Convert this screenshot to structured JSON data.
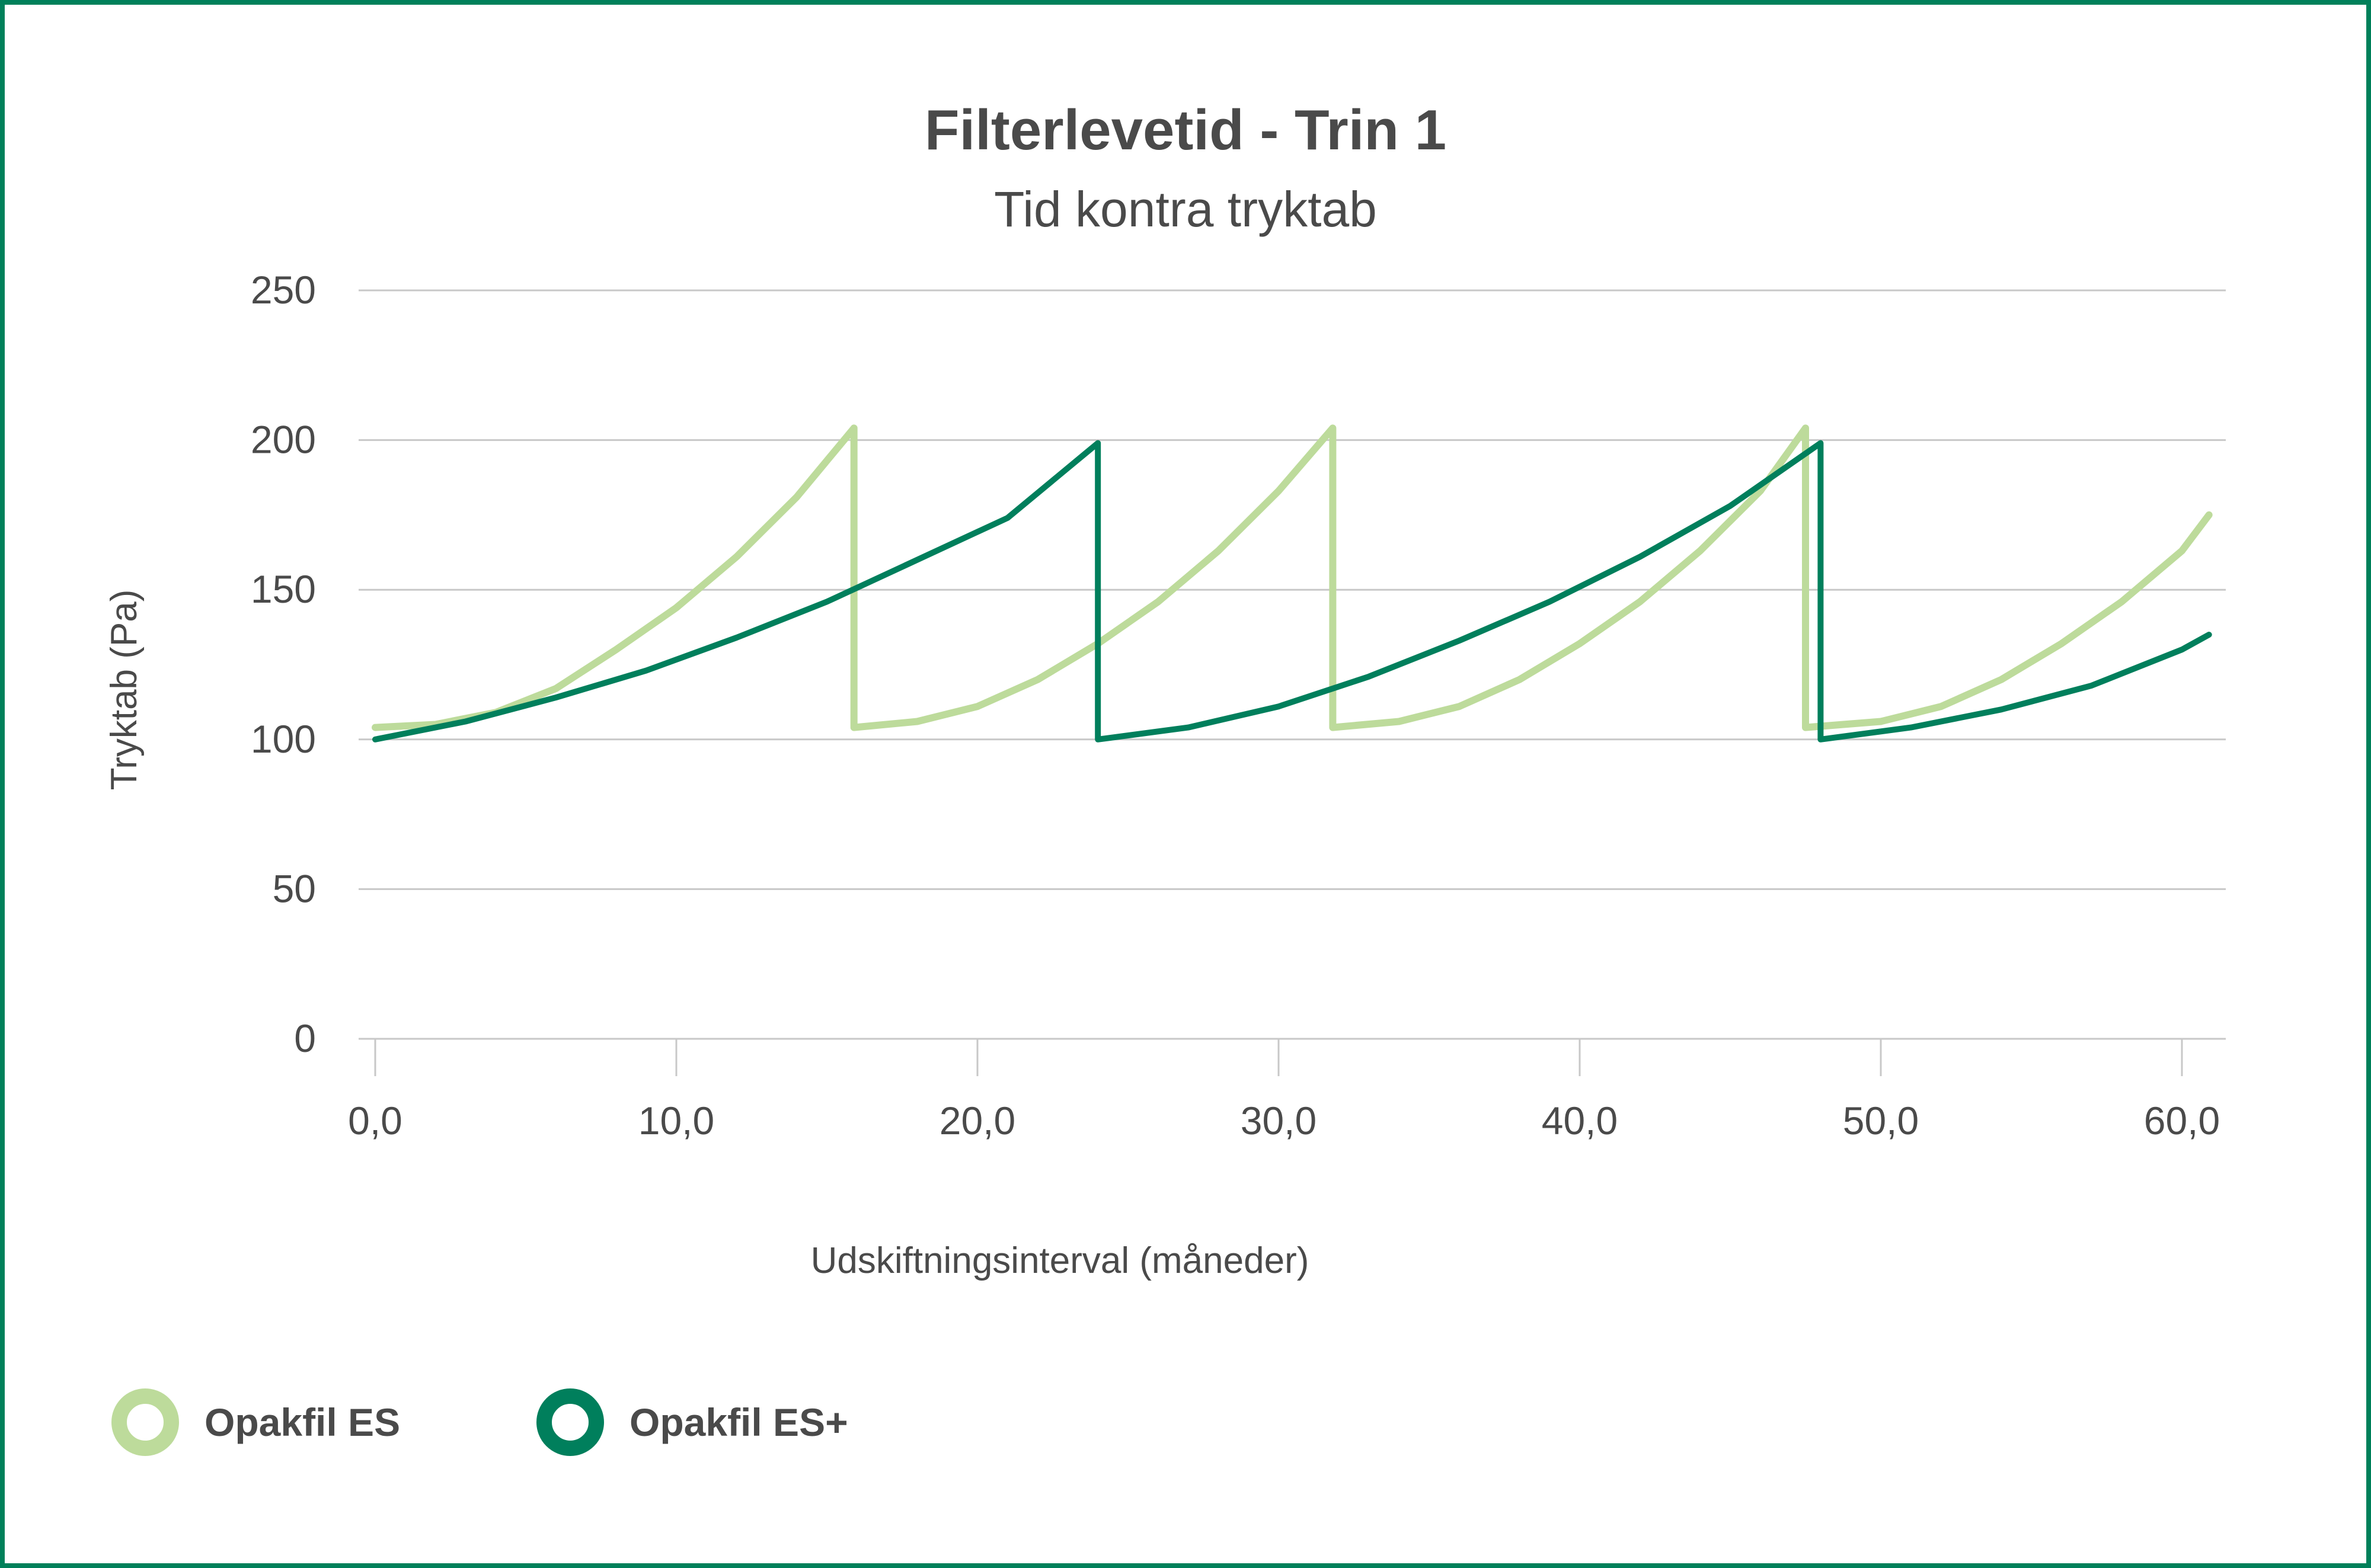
{
  "colors": {
    "frame": "#00805a",
    "grid": "#c8c8c8",
    "text": "#4a4a4a",
    "series_es": "#bddb9b",
    "series_es_plus": "#007f5c"
  },
  "chart_data": {
    "type": "line",
    "title": "Filterlevetid - Trin 1",
    "subtitle": "Tid kontra tryktab",
    "xlabel": "Udskiftningsinterval (måneder)",
    "ylabel": "Tryktab (Pa)",
    "xlim": [
      0,
      61
    ],
    "ylim": [
      0,
      250
    ],
    "x_ticks": [
      "0,0",
      "10,0",
      "20,0",
      "30,0",
      "40,0",
      "50,0",
      "60,0"
    ],
    "x_tick_values": [
      0,
      10,
      20,
      30,
      40,
      50,
      60
    ],
    "y_ticks": [
      "250",
      "200",
      "150",
      "100",
      "50",
      "0"
    ],
    "y_tick_values": [
      250,
      200,
      150,
      100,
      50,
      0
    ],
    "grid": "horizontal",
    "legend_position": "bottom-left",
    "series": [
      {
        "name": "Opakfil ES",
        "color": "#bddb9b",
        "points": [
          [
            0,
            104
          ],
          [
            2,
            105
          ],
          [
            4,
            109
          ],
          [
            6,
            117
          ],
          [
            8,
            130
          ],
          [
            10,
            144
          ],
          [
            12,
            161
          ],
          [
            14,
            181
          ],
          [
            15.9,
            204
          ],
          [
            15.9,
            104
          ],
          [
            18,
            106
          ],
          [
            20,
            111
          ],
          [
            22,
            120
          ],
          [
            24,
            132
          ],
          [
            26,
            146
          ],
          [
            28,
            163
          ],
          [
            30,
            183
          ],
          [
            31.8,
            204
          ],
          [
            31.8,
            104
          ],
          [
            34,
            106
          ],
          [
            36,
            111
          ],
          [
            38,
            120
          ],
          [
            40,
            132
          ],
          [
            42,
            146
          ],
          [
            44,
            163
          ],
          [
            46,
            183
          ],
          [
            47.5,
            204
          ],
          [
            47.5,
            104
          ],
          [
            50,
            106
          ],
          [
            52,
            111
          ],
          [
            54,
            120
          ],
          [
            56,
            132
          ],
          [
            58,
            146
          ],
          [
            60,
            163
          ],
          [
            60.9,
            175
          ]
        ]
      },
      {
        "name": "Opakfil ES+",
        "color": "#007f5c",
        "points": [
          [
            0,
            100
          ],
          [
            3,
            106
          ],
          [
            6,
            114
          ],
          [
            9,
            123
          ],
          [
            12,
            134
          ],
          [
            15,
            146
          ],
          [
            18,
            160
          ],
          [
            21,
            174
          ],
          [
            24,
            199
          ],
          [
            24,
            100
          ],
          [
            27,
            104
          ],
          [
            30,
            111
          ],
          [
            33,
            121
          ],
          [
            36,
            133
          ],
          [
            39,
            146
          ],
          [
            42,
            161
          ],
          [
            45,
            178
          ],
          [
            48,
            199
          ],
          [
            48,
            100
          ],
          [
            51,
            104
          ],
          [
            54,
            110
          ],
          [
            57,
            118
          ],
          [
            60,
            130
          ],
          [
            60.9,
            135
          ]
        ]
      }
    ]
  }
}
